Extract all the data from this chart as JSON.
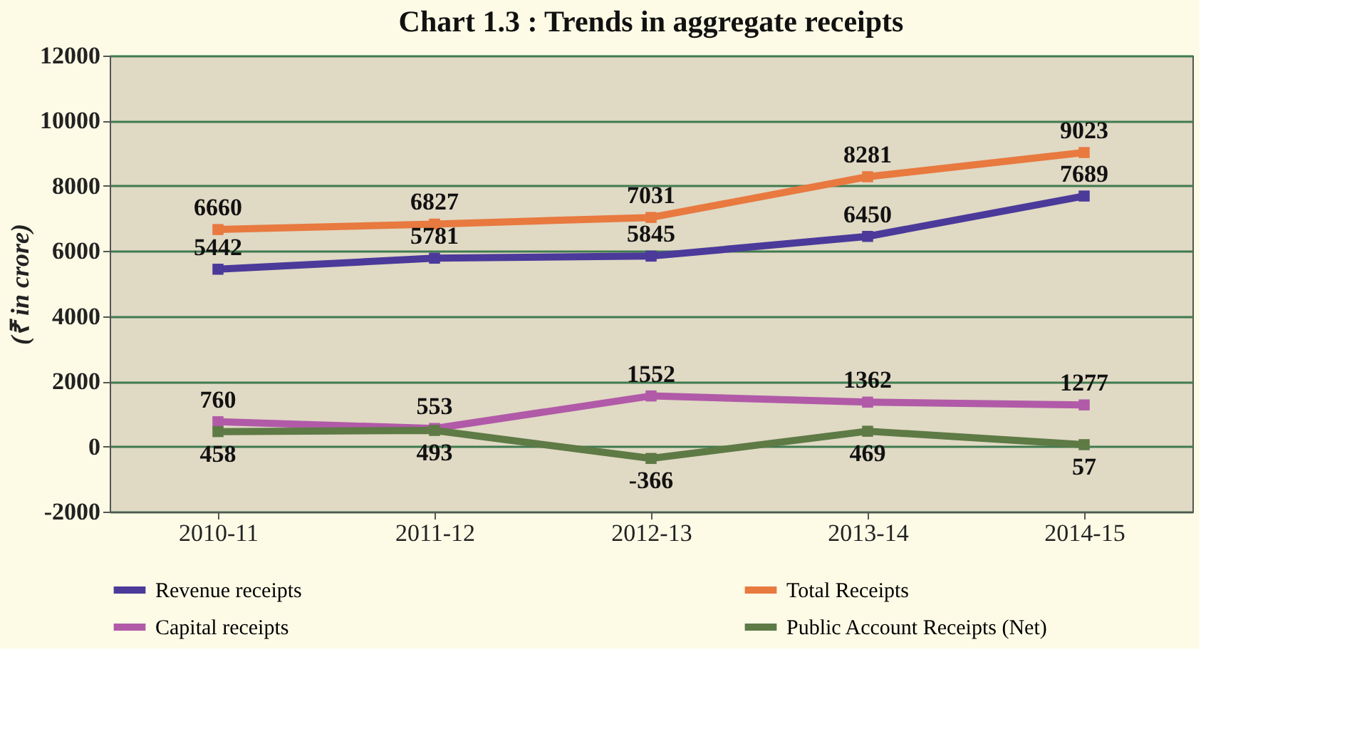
{
  "chart_data": {
    "type": "line",
    "title": "Chart 1.3 : Trends in aggregate receipts",
    "ylabel": "(₹ in crore)",
    "categories": [
      "2010-11",
      "2011-12",
      "2012-13",
      "2013-14",
      "2014-15"
    ],
    "series": [
      {
        "name": "Revenue receipts",
        "color": "#4b3a9a",
        "values": [
          5442,
          5781,
          5845,
          6450,
          7689
        ]
      },
      {
        "name": "Total Receipts",
        "color": "#e8793f",
        "values": [
          6660,
          6827,
          7031,
          8281,
          9023
        ]
      },
      {
        "name": "Capital receipts",
        "color": "#b15aa8",
        "values": [
          760,
          553,
          1552,
          1362,
          1277
        ]
      },
      {
        "name": "Public Account Receipts (Net)",
        "color": "#5e7a45",
        "values": [
          458,
          493,
          -366,
          469,
          57
        ]
      }
    ],
    "ylim": [
      -2000,
      12000
    ],
    "yticks": [
      -2000,
      0,
      2000,
      4000,
      6000,
      8000,
      10000,
      12000
    ],
    "grid": "y",
    "legend": "bottom",
    "data_labels": true,
    "marker": "square",
    "line_style": "solid"
  }
}
